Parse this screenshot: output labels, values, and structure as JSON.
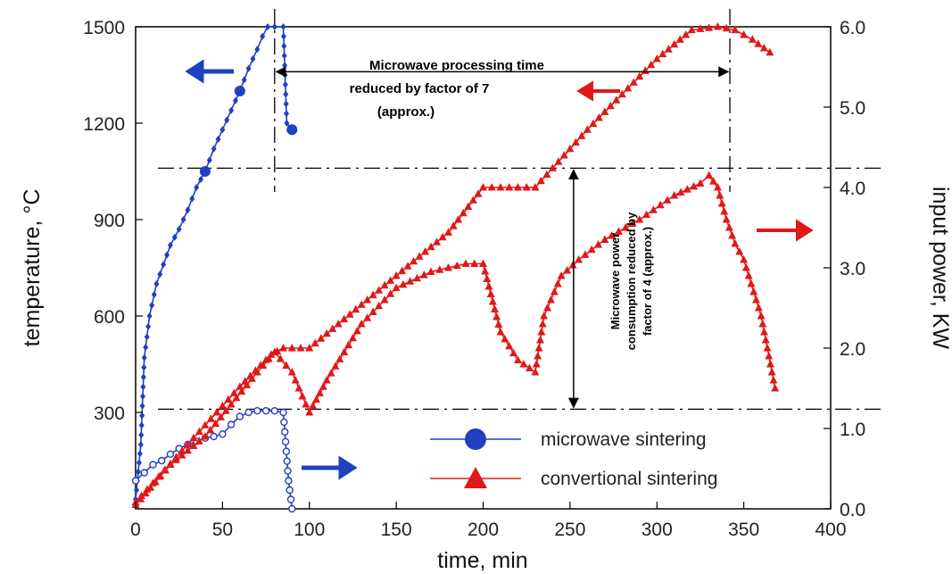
{
  "chart_data": {
    "type": "line",
    "xlabel": "time, min",
    "ylabel_left": "temperature, °C",
    "ylabel_right": "input power, KW",
    "x_range": [
      0,
      400
    ],
    "y_left_range": [
      0,
      1500
    ],
    "y_right_range": [
      0,
      6.0
    ],
    "x_ticks": [
      0,
      50,
      100,
      150,
      200,
      250,
      300,
      350,
      400
    ],
    "y_left_ticks": [
      300,
      600,
      900,
      1200,
      1500
    ],
    "y_right_ticks": [
      "0.0",
      "1.0",
      "2.0",
      "3.0",
      "4.0",
      "5.0",
      "6.0"
    ],
    "grid": false,
    "legend_position": "bottom-right",
    "colors": {
      "microwave": "#2040c0",
      "conventional": "#e01818",
      "reference": "#000000"
    },
    "series": [
      {
        "name": "microwave sintering",
        "id": "mw_temp",
        "axis": "left",
        "color": "#2040c0",
        "marker": "diamond",
        "x": [
          0,
          3,
          5,
          8,
          12,
          16,
          20,
          25,
          30,
          35,
          40,
          45,
          50,
          55,
          60,
          65,
          70,
          73,
          76,
          80,
          85,
          87,
          90
        ],
        "y": [
          30,
          200,
          470,
          600,
          700,
          760,
          820,
          870,
          930,
          1000,
          1050,
          1120,
          1180,
          1240,
          1300,
          1370,
          1430,
          1470,
          1500,
          1500,
          1500,
          1200,
          1180
        ]
      },
      {
        "name": "microwave sintering",
        "id": "mw_power",
        "axis": "right",
        "color": "#2040c0",
        "marker": "circle-open",
        "x": [
          0,
          5,
          10,
          15,
          20,
          25,
          30,
          35,
          40,
          45,
          50,
          55,
          60,
          65,
          70,
          75,
          80,
          85,
          88,
          90
        ],
        "y": [
          0.35,
          0.45,
          0.55,
          0.6,
          0.68,
          0.75,
          0.8,
          0.84,
          0.88,
          0.9,
          0.93,
          1.05,
          1.15,
          1.2,
          1.22,
          1.22,
          1.22,
          1.2,
          0.35,
          0.0
        ]
      },
      {
        "name": "convertional sintering",
        "id": "conv_temp",
        "axis": "left",
        "color": "#e01818",
        "marker": "triangle",
        "x": [
          0,
          20,
          40,
          60,
          78,
          85,
          95,
          100,
          120,
          140,
          160,
          180,
          200,
          210,
          220,
          230,
          240,
          260,
          280,
          300,
          320,
          335,
          345,
          355,
          365
        ],
        "y": [
          20,
          140,
          260,
          380,
          480,
          500,
          500,
          500,
          590,
          680,
          770,
          860,
          1000,
          1000,
          1000,
          1000,
          1060,
          1180,
          1290,
          1400,
          1490,
          1500,
          1490,
          1460,
          1420
        ]
      },
      {
        "name": "convertional sintering",
        "id": "conv_power",
        "axis": "right",
        "color": "#e01818",
        "marker": "triangle",
        "x": [
          0,
          20,
          40,
          55,
          70,
          80,
          90,
          100,
          110,
          130,
          150,
          170,
          190,
          200,
          210,
          220,
          230,
          235,
          245,
          255,
          270,
          290,
          310,
          325,
          330,
          335,
          340,
          345,
          350,
          360,
          368
        ],
        "y": [
          0.05,
          0.55,
          0.9,
          1.3,
          1.7,
          1.95,
          1.7,
          1.2,
          1.6,
          2.3,
          2.75,
          2.95,
          3.05,
          3.05,
          2.2,
          1.85,
          1.7,
          2.4,
          2.9,
          3.1,
          3.35,
          3.6,
          3.9,
          4.05,
          4.15,
          4.0,
          3.6,
          3.3,
          3.1,
          2.4,
          1.5
        ]
      }
    ],
    "reference_lines": [
      {
        "orientation": "horizontal",
        "y": 1060,
        "axis": "left"
      },
      {
        "orientation": "horizontal",
        "y": 310,
        "axis": "left"
      },
      {
        "orientation": "vertical",
        "x": 80,
        "y_from": 1500,
        "y_to": 1000
      },
      {
        "orientation": "vertical",
        "x": 342,
        "y_from": 1500,
        "y_to": 1000
      }
    ],
    "annotations": {
      "time_text_lines": [
        "Microwave processing time",
        "reduced by factor of 7",
        "(approx.)"
      ],
      "power_text_lines": [
        "Microwave power",
        "consumption reduced by",
        "factor of 4 (approx.)"
      ],
      "time_arrow": {
        "x_from": 80,
        "x_to": 342,
        "y": 1360
      },
      "power_arrow": {
        "x": 250,
        "y_from": 1060,
        "y_to": 310
      }
    }
  }
}
